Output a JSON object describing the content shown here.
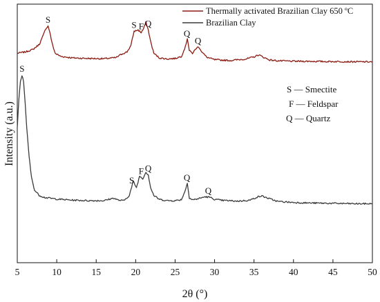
{
  "chart_data": {
    "type": "line",
    "xlabel": "2θ (°)",
    "ylabel": "Intensity (a.u.)",
    "xlim": [
      5,
      50
    ],
    "ylim": [
      0,
      100
    ],
    "x_ticks": [
      5,
      10,
      15,
      20,
      25,
      30,
      35,
      40,
      45,
      50
    ],
    "x_tick_labels": [
      "5",
      "10",
      "15",
      "20",
      "25",
      "30",
      "35",
      "40",
      "45",
      "50"
    ],
    "y_tick_labels_shown": false,
    "grid": false,
    "legend_position": "top-right",
    "series": [
      {
        "name": "Thermally activated Brazilian Clay 650 ºC",
        "color": "#8b1a10",
        "x": [
          5.0,
          6.0,
          7.0,
          7.8,
          8.3,
          8.6,
          8.9,
          9.1,
          9.4,
          9.8,
          10.5,
          12.0,
          14.0,
          16.0,
          17.5,
          18.3,
          18.9,
          19.4,
          19.8,
          20.3,
          20.7,
          21.0,
          21.3,
          21.6,
          21.9,
          22.3,
          23.0,
          24.0,
          25.0,
          25.8,
          26.3,
          26.55,
          26.8,
          27.2,
          27.7,
          28.0,
          28.4,
          29.0,
          30.0,
          32.0,
          34.0,
          35.0,
          35.6,
          36.3,
          37.0,
          38.0,
          40.0,
          42.0,
          44.0,
          46.0,
          48.0,
          50.0
        ],
        "y": [
          81.0,
          81.5,
          82.5,
          84.5,
          88.0,
          90.5,
          91.5,
          89.5,
          85.0,
          81.0,
          79.8,
          79.2,
          79.0,
          78.9,
          79.3,
          80.8,
          81.5,
          84.0,
          89.5,
          90.0,
          89.0,
          90.5,
          93.0,
          90.0,
          85.5,
          81.0,
          79.2,
          78.8,
          79.0,
          79.8,
          83.5,
          86.8,
          82.0,
          81.0,
          83.0,
          83.5,
          81.5,
          79.5,
          78.5,
          78.2,
          78.8,
          79.6,
          80.4,
          79.3,
          78.4,
          78.1,
          77.9,
          77.9,
          77.8,
          77.8,
          77.7,
          77.7
        ],
        "peak_labels": [
          {
            "text": "S",
            "x": 8.9
          },
          {
            "text": "S",
            "x": 19.8
          },
          {
            "text": "F",
            "x": 20.7
          },
          {
            "text": "Q",
            "x": 21.6
          },
          {
            "text": "Q",
            "x": 26.5
          },
          {
            "text": "Q",
            "x": 27.9
          }
        ]
      },
      {
        "name": "Brazilian Clay",
        "color": "#3a3a3a",
        "x": [
          5.0,
          5.2,
          5.4,
          5.6,
          5.8,
          6.0,
          6.2,
          6.5,
          6.8,
          7.2,
          7.8,
          8.5,
          10.0,
          12.0,
          14.0,
          16.0,
          17.2,
          17.8,
          18.5,
          19.2,
          19.7,
          20.1,
          20.5,
          20.9,
          21.3,
          21.6,
          21.9,
          22.3,
          23.0,
          24.0,
          25.0,
          25.8,
          26.3,
          26.55,
          26.8,
          27.2,
          28.0,
          28.8,
          29.4,
          30.0,
          31.0,
          33.0,
          34.5,
          35.4,
          36.0,
          36.8,
          38.0,
          40.0,
          42.0,
          44.0,
          46.0,
          48.0,
          50.0
        ],
        "y": [
          52.0,
          63.0,
          70.0,
          72.5,
          70.0,
          62.0,
          52.0,
          41.0,
          33.0,
          28.0,
          26.0,
          25.2,
          24.6,
          24.2,
          24.0,
          24.0,
          25.0,
          24.2,
          24.0,
          26.0,
          31.5,
          29.0,
          33.5,
          32.5,
          35.0,
          34.0,
          29.0,
          26.0,
          24.5,
          24.0,
          24.0,
          24.4,
          28.0,
          31.0,
          25.0,
          24.3,
          24.8,
          25.5,
          25.3,
          24.5,
          24.1,
          23.8,
          24.2,
          25.4,
          25.8,
          24.9,
          23.7,
          23.3,
          23.1,
          23.0,
          22.9,
          22.8,
          22.8
        ],
        "peak_labels": [
          {
            "text": "S",
            "x": 5.6
          },
          {
            "text": "S",
            "x": 19.5
          },
          {
            "text": "F",
            "x": 20.7
          },
          {
            "text": "Q",
            "x": 21.6
          },
          {
            "text": "Q",
            "x": 26.5
          },
          {
            "text": "Q",
            "x": 29.2
          }
        ]
      }
    ],
    "annotations": [
      "S — Smectite",
      "F — Feldspar",
      "Q — Quartz"
    ]
  }
}
